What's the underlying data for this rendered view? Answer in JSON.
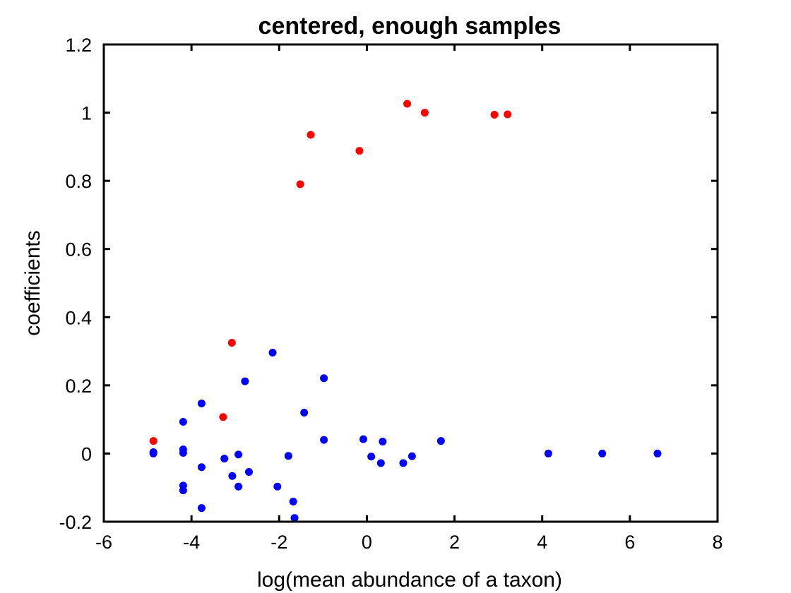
{
  "chart_data": {
    "type": "scatter",
    "title": "centered, enough samples",
    "xlabel": "log(mean abundance of a taxon)",
    "ylabel": "coefficients",
    "xlim": [
      -6,
      8
    ],
    "ylim": [
      -0.2,
      1.2
    ],
    "xticks": [
      -6,
      -4,
      -2,
      0,
      2,
      4,
      6,
      8
    ],
    "yticks": [
      -0.2,
      0,
      0.2,
      0.4,
      0.6,
      0.8,
      1,
      1.2
    ],
    "xtick_labels": [
      "-6",
      "-4",
      "-2",
      "0",
      "2",
      "4",
      "6",
      "8"
    ],
    "ytick_labels": [
      "-0.2",
      "0",
      "0.2",
      "0.4",
      "0.6",
      "0.8",
      "1",
      "1.2"
    ],
    "grid": false,
    "series": [
      {
        "color": "#ff0000",
        "points": [
          [
            -4.87,
            0.037
          ],
          [
            -3.28,
            0.107
          ],
          [
            -3.08,
            0.325
          ],
          [
            -1.52,
            0.79
          ],
          [
            -1.28,
            0.935
          ],
          [
            -0.17,
            0.888
          ],
          [
            0.92,
            1.026
          ],
          [
            1.32,
            1.0
          ],
          [
            2.91,
            0.994
          ],
          [
            3.21,
            0.995
          ]
        ]
      },
      {
        "color": "#0000ff",
        "points": [
          [
            -4.87,
            0.0
          ],
          [
            -4.87,
            0.004
          ],
          [
            -4.19,
            0.093
          ],
          [
            -4.19,
            0.012
          ],
          [
            -4.19,
            0.002
          ],
          [
            -4.19,
            -0.094
          ],
          [
            -4.19,
            -0.108
          ],
          [
            -3.77,
            0.147
          ],
          [
            -3.77,
            -0.04
          ],
          [
            -3.77,
            -0.16
          ],
          [
            -3.25,
            -0.015
          ],
          [
            -3.07,
            -0.066
          ],
          [
            -2.93,
            -0.003
          ],
          [
            -2.93,
            -0.097
          ],
          [
            -2.78,
            0.212
          ],
          [
            -2.69,
            -0.054
          ],
          [
            -2.15,
            0.296
          ],
          [
            -2.04,
            -0.097
          ],
          [
            -1.79,
            -0.007
          ],
          [
            -1.68,
            -0.141
          ],
          [
            -1.65,
            -0.189
          ],
          [
            -1.43,
            0.12
          ],
          [
            -0.98,
            0.221
          ],
          [
            -0.98,
            0.04
          ],
          [
            -0.08,
            0.042
          ],
          [
            0.1,
            -0.009
          ],
          [
            0.32,
            -0.028
          ],
          [
            0.36,
            0.035
          ],
          [
            0.83,
            -0.028
          ],
          [
            1.03,
            -0.008
          ],
          [
            1.69,
            0.037
          ],
          [
            4.14,
            0.0
          ],
          [
            5.37,
            0.0
          ],
          [
            6.63,
            0.0
          ]
        ]
      }
    ]
  }
}
